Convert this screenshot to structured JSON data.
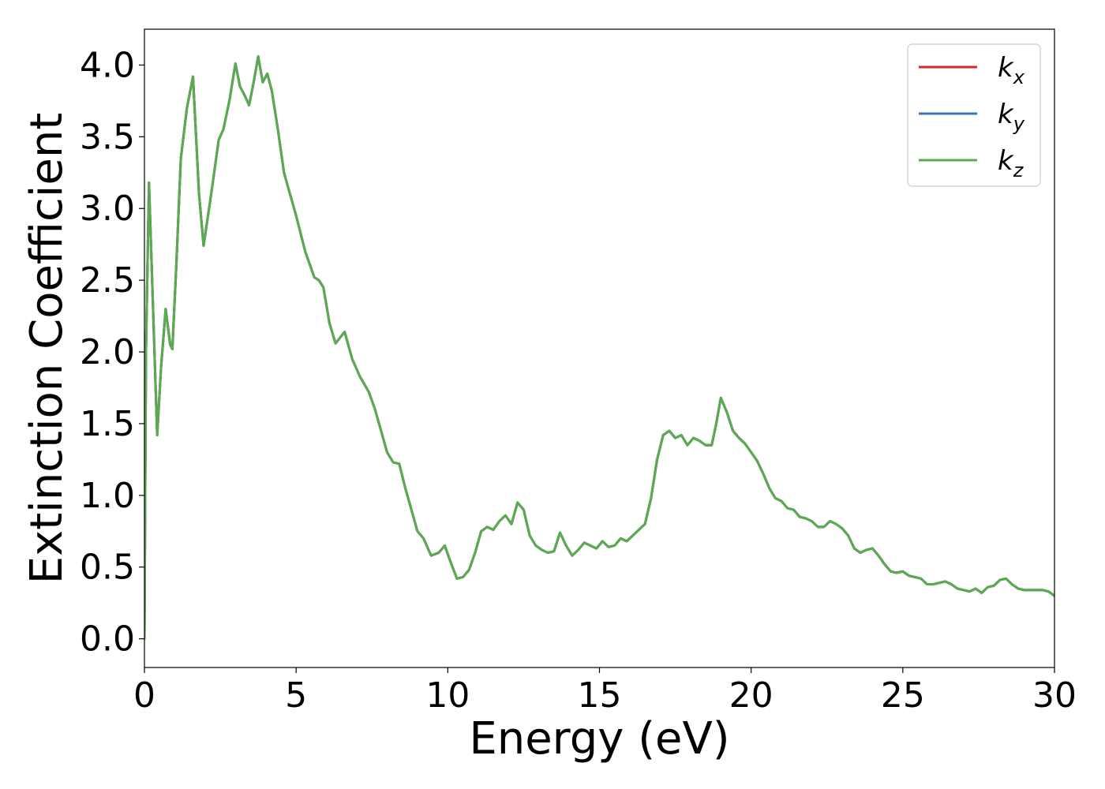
{
  "chart_data": {
    "type": "line",
    "title": "",
    "xlabel": "Energy (eV)",
    "ylabel": "Extinction Coefficient",
    "xlim": [
      0,
      30
    ],
    "ylim": [
      -0.2,
      4.25
    ],
    "x_ticks": [
      0,
      5,
      10,
      15,
      20,
      25,
      30
    ],
    "x_tick_labels": [
      "0",
      "5",
      "10",
      "15",
      "20",
      "25",
      "30"
    ],
    "y_ticks": [
      0,
      0.5,
      1,
      1.5,
      2,
      2.5,
      3,
      3.5,
      4
    ],
    "y_tick_labels": [
      "0.0",
      "0.5",
      "1.0",
      "1.5",
      "2.0",
      "2.5",
      "3.0",
      "3.5",
      "4.0"
    ],
    "grid": false,
    "legend_position": "top-right",
    "x": [
      0,
      0.05,
      0.15,
      0.3,
      0.42,
      0.55,
      0.7,
      0.85,
      0.92,
      1.05,
      1.2,
      1.4,
      1.6,
      1.8,
      1.95,
      2.2,
      2.45,
      2.6,
      2.8,
      3.0,
      3.15,
      3.3,
      3.45,
      3.6,
      3.75,
      3.9,
      4.05,
      4.2,
      4.4,
      4.6,
      4.8,
      5.0,
      5.3,
      5.6,
      5.75,
      5.9,
      6.1,
      6.3,
      6.45,
      6.6,
      6.85,
      7.1,
      7.4,
      7.6,
      7.8,
      8.0,
      8.2,
      8.4,
      8.6,
      8.8,
      9.0,
      9.2,
      9.45,
      9.7,
      9.9,
      10.05,
      10.3,
      10.5,
      10.7,
      10.9,
      11.1,
      11.3,
      11.5,
      11.7,
      11.9,
      12.1,
      12.3,
      12.5,
      12.7,
      12.9,
      13.1,
      13.3,
      13.5,
      13.7,
      13.9,
      14.1,
      14.3,
      14.5,
      14.7,
      14.9,
      15.1,
      15.3,
      15.5,
      15.7,
      15.9,
      16.1,
      16.3,
      16.5,
      16.7,
      16.9,
      17.1,
      17.3,
      17.5,
      17.7,
      17.9,
      18.1,
      18.3,
      18.5,
      18.7,
      18.85,
      19.0,
      19.2,
      19.4,
      19.6,
      19.8,
      20.0,
      20.2,
      20.4,
      20.6,
      20.8,
      21.0,
      21.2,
      21.4,
      21.6,
      21.8,
      22.0,
      22.2,
      22.4,
      22.6,
      22.8,
      23.0,
      23.2,
      23.4,
      23.6,
      23.8,
      24.0,
      24.2,
      24.4,
      24.6,
      24.8,
      25.0,
      25.2,
      25.4,
      25.6,
      25.8,
      26.0,
      26.2,
      26.4,
      26.6,
      26.8,
      27.0,
      27.2,
      27.4,
      27.6,
      27.8,
      28.0,
      28.2,
      28.4,
      28.6,
      28.8,
      29.0,
      29.2,
      29.4,
      29.6,
      29.8,
      30.0
    ],
    "series": [
      {
        "name": "kx",
        "label_base": "k",
        "label_sub": "x",
        "color": "#d62728",
        "values": [
          0.0,
          2.0,
          3.18,
          2.2,
          1.42,
          1.9,
          2.3,
          2.05,
          2.02,
          2.6,
          3.35,
          3.7,
          3.92,
          3.1,
          2.74,
          3.1,
          3.48,
          3.55,
          3.75,
          4.01,
          3.85,
          3.79,
          3.72,
          3.88,
          4.06,
          3.88,
          3.94,
          3.82,
          3.55,
          3.25,
          3.1,
          2.95,
          2.7,
          2.52,
          2.5,
          2.45,
          2.2,
          2.06,
          2.1,
          2.14,
          1.95,
          1.83,
          1.72,
          1.6,
          1.45,
          1.3,
          1.23,
          1.22,
          1.05,
          0.9,
          0.75,
          0.7,
          0.58,
          0.6,
          0.65,
          0.56,
          0.42,
          0.43,
          0.48,
          0.6,
          0.75,
          0.78,
          0.76,
          0.82,
          0.86,
          0.8,
          0.95,
          0.9,
          0.72,
          0.65,
          0.62,
          0.6,
          0.61,
          0.74,
          0.65,
          0.58,
          0.62,
          0.67,
          0.65,
          0.63,
          0.68,
          0.64,
          0.65,
          0.7,
          0.68,
          0.72,
          0.76,
          0.8,
          0.98,
          1.25,
          1.42,
          1.45,
          1.4,
          1.42,
          1.35,
          1.4,
          1.38,
          1.35,
          1.35,
          1.5,
          1.68,
          1.58,
          1.45,
          1.4,
          1.36,
          1.3,
          1.24,
          1.15,
          1.05,
          0.98,
          0.96,
          0.91,
          0.9,
          0.85,
          0.84,
          0.82,
          0.78,
          0.78,
          0.82,
          0.8,
          0.77,
          0.72,
          0.63,
          0.6,
          0.62,
          0.63,
          0.58,
          0.52,
          0.47,
          0.46,
          0.47,
          0.44,
          0.43,
          0.42,
          0.38,
          0.38,
          0.39,
          0.4,
          0.38,
          0.35,
          0.34,
          0.33,
          0.35,
          0.32,
          0.36,
          0.37,
          0.41,
          0.42,
          0.38,
          0.35,
          0.34,
          0.34,
          0.34,
          0.34,
          0.33,
          0.3
        ]
      },
      {
        "name": "ky",
        "label_base": "k",
        "label_sub": "y",
        "color": "#3a78b4",
        "values": [
          0.0,
          2.0,
          3.18,
          2.2,
          1.42,
          1.9,
          2.3,
          2.05,
          2.02,
          2.6,
          3.35,
          3.7,
          3.92,
          3.1,
          2.74,
          3.1,
          3.48,
          3.55,
          3.75,
          4.01,
          3.85,
          3.79,
          3.72,
          3.88,
          4.06,
          3.88,
          3.94,
          3.82,
          3.55,
          3.25,
          3.1,
          2.95,
          2.7,
          2.52,
          2.5,
          2.45,
          2.2,
          2.06,
          2.1,
          2.14,
          1.95,
          1.83,
          1.72,
          1.6,
          1.45,
          1.3,
          1.23,
          1.22,
          1.05,
          0.9,
          0.75,
          0.7,
          0.58,
          0.6,
          0.65,
          0.56,
          0.42,
          0.43,
          0.48,
          0.6,
          0.75,
          0.78,
          0.76,
          0.82,
          0.86,
          0.8,
          0.95,
          0.9,
          0.72,
          0.65,
          0.62,
          0.6,
          0.61,
          0.74,
          0.65,
          0.58,
          0.62,
          0.67,
          0.65,
          0.63,
          0.68,
          0.64,
          0.65,
          0.7,
          0.68,
          0.72,
          0.76,
          0.8,
          0.98,
          1.25,
          1.42,
          1.45,
          1.4,
          1.42,
          1.35,
          1.4,
          1.38,
          1.35,
          1.35,
          1.5,
          1.68,
          1.58,
          1.45,
          1.4,
          1.36,
          1.3,
          1.24,
          1.15,
          1.05,
          0.98,
          0.96,
          0.91,
          0.9,
          0.85,
          0.84,
          0.82,
          0.78,
          0.78,
          0.82,
          0.8,
          0.77,
          0.72,
          0.63,
          0.6,
          0.62,
          0.63,
          0.58,
          0.52,
          0.47,
          0.46,
          0.47,
          0.44,
          0.43,
          0.42,
          0.38,
          0.38,
          0.39,
          0.4,
          0.38,
          0.35,
          0.34,
          0.33,
          0.35,
          0.32,
          0.36,
          0.37,
          0.41,
          0.42,
          0.38,
          0.35,
          0.34,
          0.34,
          0.34,
          0.34,
          0.33,
          0.3
        ]
      },
      {
        "name": "kz",
        "label_base": "k",
        "label_sub": "z",
        "color": "#5aaa50",
        "values": [
          0.0,
          2.0,
          3.18,
          2.2,
          1.42,
          1.9,
          2.3,
          2.05,
          2.02,
          2.6,
          3.35,
          3.7,
          3.92,
          3.1,
          2.74,
          3.1,
          3.48,
          3.55,
          3.75,
          4.01,
          3.85,
          3.79,
          3.72,
          3.88,
          4.06,
          3.88,
          3.94,
          3.82,
          3.55,
          3.25,
          3.1,
          2.95,
          2.7,
          2.52,
          2.5,
          2.45,
          2.2,
          2.06,
          2.1,
          2.14,
          1.95,
          1.83,
          1.72,
          1.6,
          1.45,
          1.3,
          1.23,
          1.22,
          1.05,
          0.9,
          0.75,
          0.7,
          0.58,
          0.6,
          0.65,
          0.56,
          0.42,
          0.43,
          0.48,
          0.6,
          0.75,
          0.78,
          0.76,
          0.82,
          0.86,
          0.8,
          0.95,
          0.9,
          0.72,
          0.65,
          0.62,
          0.6,
          0.61,
          0.74,
          0.65,
          0.58,
          0.62,
          0.67,
          0.65,
          0.63,
          0.68,
          0.64,
          0.65,
          0.7,
          0.68,
          0.72,
          0.76,
          0.8,
          0.98,
          1.25,
          1.42,
          1.45,
          1.4,
          1.42,
          1.35,
          1.4,
          1.38,
          1.35,
          1.35,
          1.5,
          1.68,
          1.58,
          1.45,
          1.4,
          1.36,
          1.3,
          1.24,
          1.15,
          1.05,
          0.98,
          0.96,
          0.91,
          0.9,
          0.85,
          0.84,
          0.82,
          0.78,
          0.78,
          0.82,
          0.8,
          0.77,
          0.72,
          0.63,
          0.6,
          0.62,
          0.63,
          0.58,
          0.52,
          0.47,
          0.46,
          0.47,
          0.44,
          0.43,
          0.42,
          0.38,
          0.38,
          0.39,
          0.4,
          0.38,
          0.35,
          0.34,
          0.33,
          0.35,
          0.32,
          0.36,
          0.37,
          0.41,
          0.42,
          0.38,
          0.35,
          0.34,
          0.34,
          0.34,
          0.34,
          0.33,
          0.3
        ]
      }
    ]
  }
}
